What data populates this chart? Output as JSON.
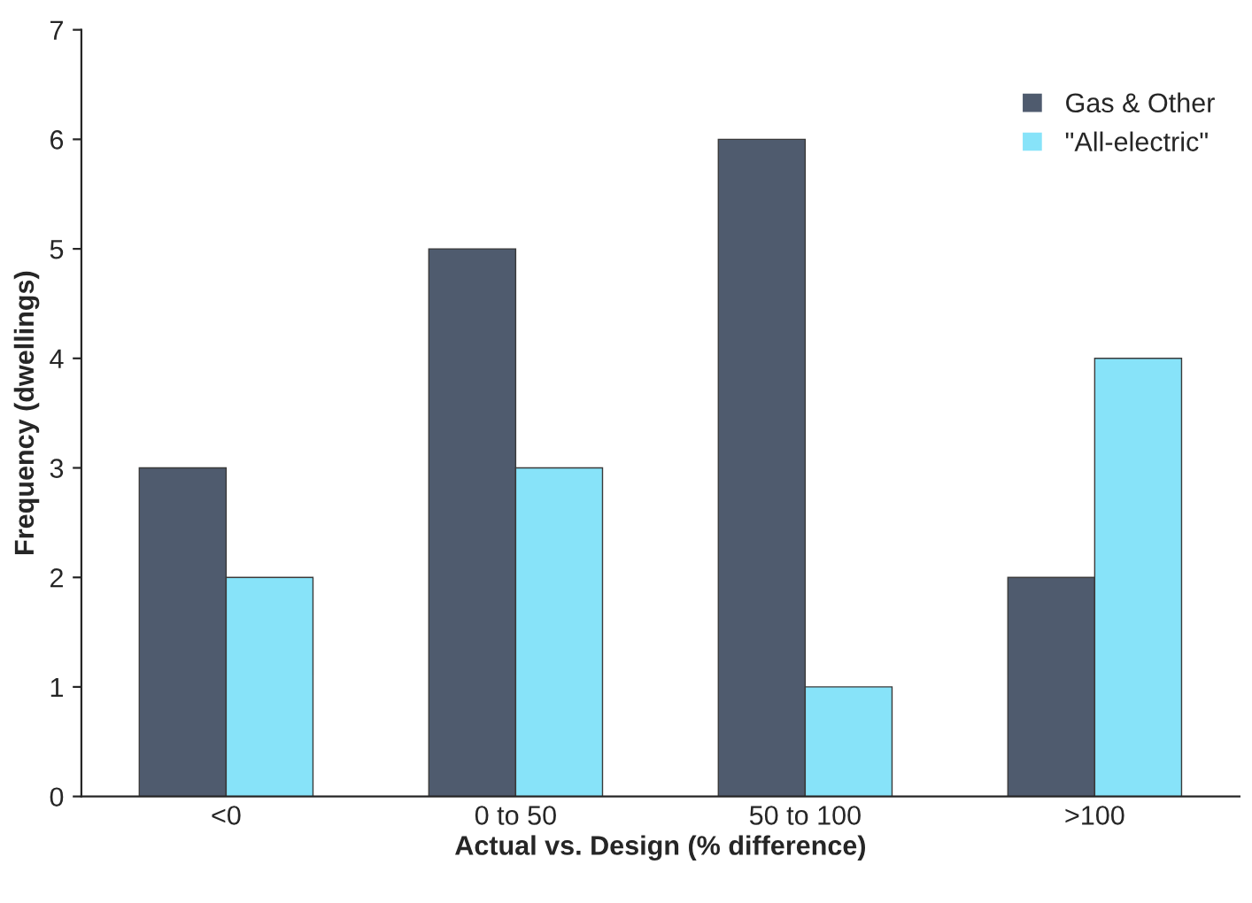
{
  "chart_data": {
    "type": "bar",
    "xlabel": "Actual vs. Design (% difference)",
    "ylabel": "Frequency (dwellings)",
    "categories": [
      "<0",
      "0 to 50",
      "50 to 100",
      ">100"
    ],
    "series": [
      {
        "name": "Gas & Other",
        "color": "#4f5b6e",
        "values": [
          3,
          5,
          6,
          2
        ]
      },
      {
        "name": "\"All-electric\"",
        "color": "#87e3f9",
        "values": [
          2,
          3,
          1,
          4
        ]
      }
    ],
    "ylim": [
      0,
      7
    ],
    "yticks": [
      0,
      1,
      2,
      3,
      4,
      5,
      6,
      7
    ],
    "grid": false,
    "legend": "top right"
  }
}
